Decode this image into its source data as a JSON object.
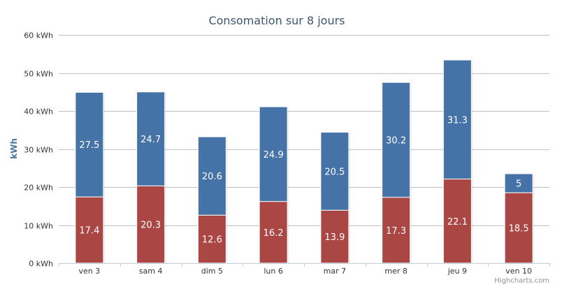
{
  "chart_data": {
    "type": "bar",
    "stacked": true,
    "title": "Consomation sur 8 jours",
    "ylabel": "kWh",
    "xlabel": "",
    "categories": [
      "ven 3",
      "sam 4",
      "dim 5",
      "lun 6",
      "mar 7",
      "mer 8",
      "jeu 9",
      "ven 10"
    ],
    "ylim": [
      0,
      60
    ],
    "yticks": [
      0,
      10,
      20,
      30,
      40,
      50,
      60
    ],
    "ytick_labels": [
      "0 kWh",
      "10 kWh",
      "20 kWh",
      "30 kWh",
      "40 kWh",
      "50 kWh",
      "60 kWh"
    ],
    "grid": true,
    "legend": "none",
    "series": [
      {
        "values": [
          17.4,
          20.3,
          12.6,
          16.2,
          13.9,
          17.3,
          22.1,
          18.5
        ],
        "color": "#aa4643"
      },
      {
        "values": [
          27.5,
          24.7,
          20.6,
          24.9,
          20.5,
          30.2,
          31.3,
          5
        ],
        "color": "#4572a7"
      }
    ]
  },
  "credits": "Highcharts.com"
}
